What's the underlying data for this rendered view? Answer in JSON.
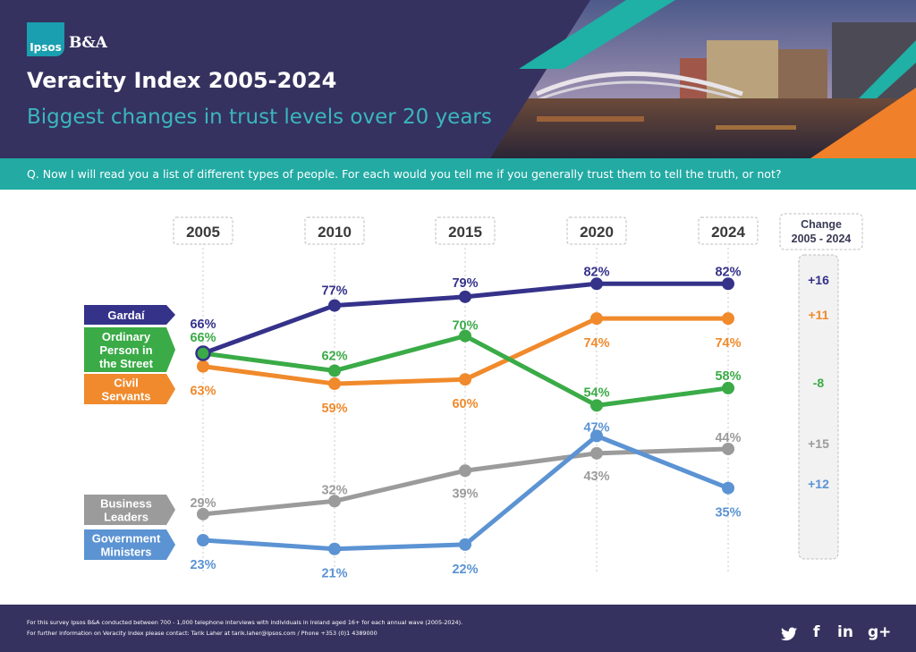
{
  "header": {
    "logo_ipsos": "Ipsos",
    "logo_ba": "B&A",
    "title": "Veracity Index 2005-2024",
    "subtitle": "Biggest changes in trust levels over 20 years"
  },
  "question": "Q. Now I will read you a list of different types of people. For each would you tell me if you generally trust them to tell the truth, or not?",
  "chart_data": {
    "type": "line",
    "x": [
      "2005",
      "2010",
      "2015",
      "2020",
      "2024"
    ],
    "change_header": [
      "Change",
      "2005 - 2024"
    ],
    "series": [
      {
        "name": "Gardaí",
        "label_lines": [
          "Gardaí"
        ],
        "values": [
          66,
          77,
          79,
          82,
          82
        ],
        "color": "#35328a",
        "change": "+16"
      },
      {
        "name": "Ordinary Person in the Street",
        "label_lines": [
          "Ordinary",
          "Person in",
          "the Street"
        ],
        "values": [
          66,
          62,
          70,
          54,
          58
        ],
        "color": "#3aab47",
        "change": "-8"
      },
      {
        "name": "Civil Servants",
        "label_lines": [
          "Civil",
          "Servants"
        ],
        "values": [
          63,
          59,
          60,
          74,
          74
        ],
        "color": "#f08a2c",
        "change": "+11"
      },
      {
        "name": "Business Leaders",
        "label_lines": [
          "Business",
          "Leaders"
        ],
        "values": [
          29,
          32,
          39,
          43,
          44
        ],
        "color": "#9b9b9b",
        "change": "+15"
      },
      {
        "name": "Government Ministers",
        "label_lines": [
          "Government",
          "Ministers"
        ],
        "values": [
          23,
          21,
          22,
          47,
          35
        ],
        "color": "#5b93d3",
        "change": "+12"
      }
    ],
    "value_suffix": "%",
    "ylim": [
      15,
      90
    ]
  },
  "footer": {
    "line1": "For this survey Ipsos B&A conducted between 700 - 1,000 telephone interviews with individuals in Ireland aged 16+ for each annual wave (2005-2024).",
    "line2": "For further information on Veracity Index please contact: Tarik Laher at tarik.laher@ipsos.com / Phone +353 (0)1 4389000",
    "social": [
      "twitter-icon",
      "facebook-icon",
      "linkedin-icon",
      "google-plus-icon"
    ]
  }
}
